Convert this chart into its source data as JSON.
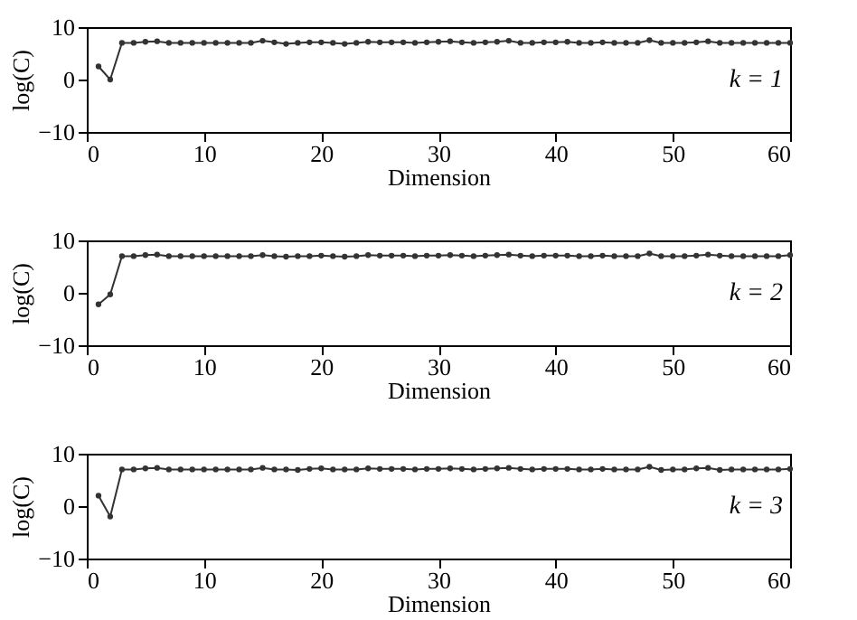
{
  "chart_data": [
    {
      "type": "line",
      "x": [
        1,
        2,
        3,
        4,
        5,
        6,
        7,
        8,
        9,
        10,
        11,
        12,
        13,
        14,
        15,
        16,
        17,
        18,
        19,
        20,
        21,
        22,
        23,
        24,
        25,
        26,
        27,
        28,
        29,
        30,
        31,
        32,
        33,
        34,
        35,
        36,
        37,
        38,
        39,
        40,
        41,
        42,
        43,
        44,
        45,
        46,
        47,
        48,
        49,
        50,
        51,
        52,
        53,
        54,
        55,
        56,
        57,
        58,
        59,
        60
      ],
      "values": [
        2.5,
        0,
        7,
        7,
        7.2,
        7.3,
        7,
        7,
        7,
        7,
        7,
        7,
        7,
        7,
        7.4,
        7.1,
        6.8,
        7,
        7.1,
        7.1,
        7,
        6.8,
        7,
        7.2,
        7.1,
        7.1,
        7.1,
        7,
        7.1,
        7.2,
        7.3,
        7.1,
        7,
        7.1,
        7.2,
        7.4,
        7,
        7,
        7.1,
        7.1,
        7.2,
        7,
        7,
        7.1,
        7,
        7,
        7,
        7.5,
        7,
        7,
        7,
        7.1,
        7.3,
        7,
        7,
        7,
        7,
        7,
        7,
        7
      ],
      "color": "#333333",
      "marker": "circle",
      "line_style": "solid",
      "grid": false,
      "xlim": [
        0,
        60
      ],
      "xticks": [
        0,
        10,
        20,
        30,
        40,
        50,
        60
      ],
      "ylim": [
        -10,
        10
      ],
      "yticks": [
        -10,
        0,
        10
      ],
      "xlabel": "Dimension",
      "ylabel": "log(C)",
      "annotations": [
        "k = 1"
      ]
    },
    {
      "type": "line",
      "x": [
        1,
        2,
        3,
        4,
        5,
        6,
        7,
        8,
        9,
        10,
        11,
        12,
        13,
        14,
        15,
        16,
        17,
        18,
        19,
        20,
        21,
        22,
        23,
        24,
        25,
        26,
        27,
        28,
        29,
        30,
        31,
        32,
        33,
        34,
        35,
        36,
        37,
        38,
        39,
        40,
        41,
        42,
        43,
        44,
        45,
        46,
        47,
        48,
        49,
        50,
        51,
        52,
        53,
        54,
        55,
        56,
        57,
        58,
        59,
        60
      ],
      "values": [
        -2.2,
        -0.3,
        7,
        7,
        7.2,
        7.3,
        7,
        7,
        7,
        7,
        7,
        7,
        7,
        7,
        7.2,
        7,
        6.9,
        7,
        7,
        7.1,
        7,
        6.9,
        7,
        7.2,
        7.1,
        7.1,
        7.1,
        7,
        7.1,
        7.1,
        7.2,
        7.1,
        7,
        7.1,
        7.2,
        7.3,
        7.1,
        7,
        7.1,
        7.1,
        7.1,
        7,
        7,
        7.1,
        7,
        7,
        7,
        7.5,
        7,
        7,
        7,
        7.1,
        7.3,
        7.1,
        7,
        7,
        7,
        7,
        7,
        7.2
      ],
      "color": "#333333",
      "marker": "circle",
      "line_style": "solid",
      "grid": false,
      "xlim": [
        0,
        60
      ],
      "xticks": [
        0,
        10,
        20,
        30,
        40,
        50,
        60
      ],
      "ylim": [
        -10,
        10
      ],
      "yticks": [
        -10,
        0,
        10
      ],
      "xlabel": "Dimension",
      "ylabel": "log(C)",
      "annotations": [
        "k = 2"
      ]
    },
    {
      "type": "line",
      "x": [
        1,
        2,
        3,
        4,
        5,
        6,
        7,
        8,
        9,
        10,
        11,
        12,
        13,
        14,
        15,
        16,
        17,
        18,
        19,
        20,
        21,
        22,
        23,
        24,
        25,
        26,
        27,
        28,
        29,
        30,
        31,
        32,
        33,
        34,
        35,
        36,
        37,
        38,
        39,
        40,
        41,
        42,
        43,
        44,
        45,
        46,
        47,
        48,
        49,
        50,
        51,
        52,
        53,
        54,
        55,
        56,
        57,
        58,
        59,
        60
      ],
      "values": [
        2,
        -2,
        7,
        7,
        7.2,
        7.3,
        7,
        7,
        7,
        7,
        7,
        7,
        7,
        7,
        7.3,
        7,
        7,
        6.9,
        7.1,
        7.2,
        7,
        7,
        7,
        7.2,
        7.1,
        7.1,
        7.1,
        7,
        7.1,
        7.1,
        7.2,
        7.1,
        7,
        7.1,
        7.2,
        7.3,
        7.1,
        7,
        7.1,
        7.1,
        7.1,
        7,
        7,
        7.1,
        7,
        7,
        7,
        7.5,
        6.9,
        7,
        7,
        7.2,
        7.3,
        6.9,
        7,
        7,
        7,
        7,
        7,
        7.1
      ],
      "color": "#333333",
      "marker": "circle",
      "line_style": "solid",
      "grid": false,
      "xlim": [
        0,
        60
      ],
      "xticks": [
        0,
        10,
        20,
        30,
        40,
        50,
        60
      ],
      "ylim": [
        -10,
        10
      ],
      "yticks": [
        -10,
        0,
        10
      ],
      "xlabel": "Dimension",
      "ylabel": "log(C)",
      "annotations": [
        "k = 3"
      ]
    }
  ]
}
